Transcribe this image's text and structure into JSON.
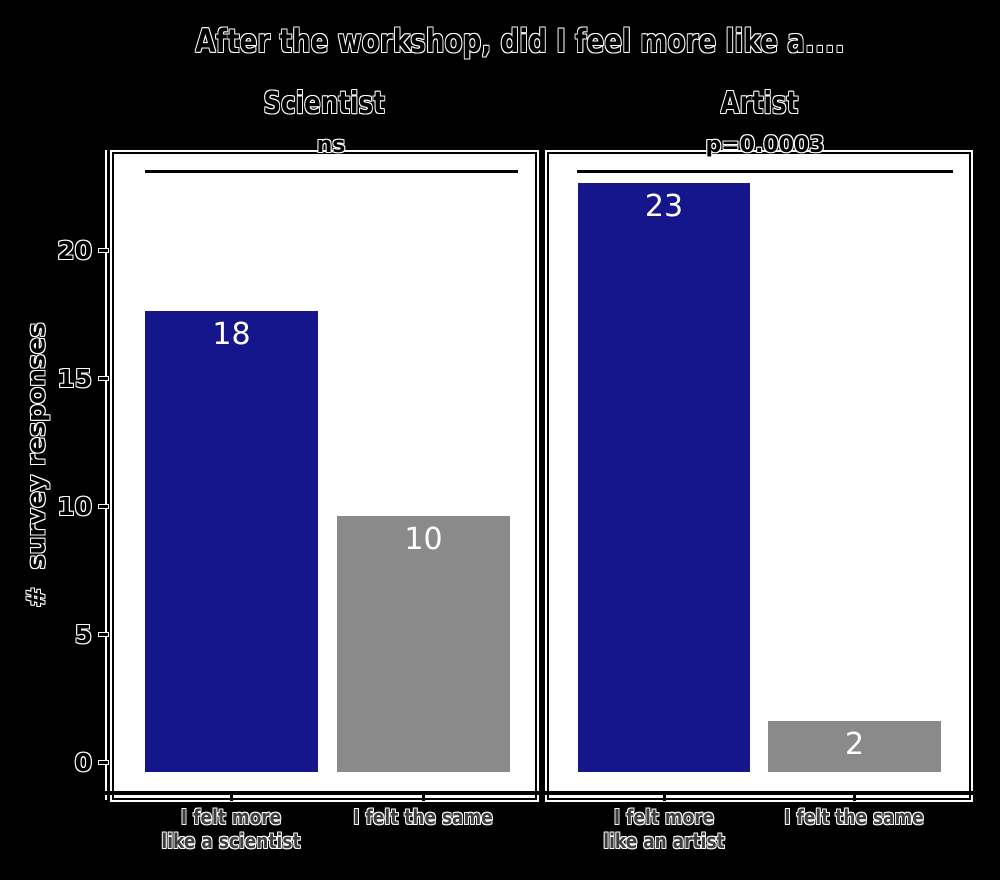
{
  "figure": {
    "background": "#000000",
    "panel_background": "#FFFFFF",
    "axis_color": "#000000",
    "value_label_color": "#FFFFFF",
    "category_label_color": "#3E3E3E"
  },
  "chart_data": {
    "type": "bar",
    "title": "After the workshop, did I feel more like a....",
    "ylabel": "#  survey responses",
    "ylim": [
      0,
      24
    ],
    "yticks": [
      0,
      5,
      10,
      15,
      20
    ],
    "grid": false,
    "legend": "none",
    "panels": [
      {
        "title": "Scientist",
        "significance": "ns",
        "categories": [
          "I felt more like a scientist",
          "I felt the same"
        ],
        "tick_lines": [
          [
            "I felt more",
            "like a scientist"
          ],
          [
            "I felt the same"
          ]
        ],
        "values": [
          18,
          10
        ],
        "bar_colors": [
          "#15158C",
          "#8A8A8A"
        ]
      },
      {
        "title": "Artist",
        "significance": "p=0.0003",
        "categories": [
          "I felt more like an artist",
          "I felt the same"
        ],
        "tick_lines": [
          [
            "I felt more",
            "like an artist"
          ],
          [
            "I felt the same"
          ]
        ],
        "values": [
          23,
          2
        ],
        "bar_colors": [
          "#15158C",
          "#8A8A8A"
        ]
      }
    ]
  }
}
